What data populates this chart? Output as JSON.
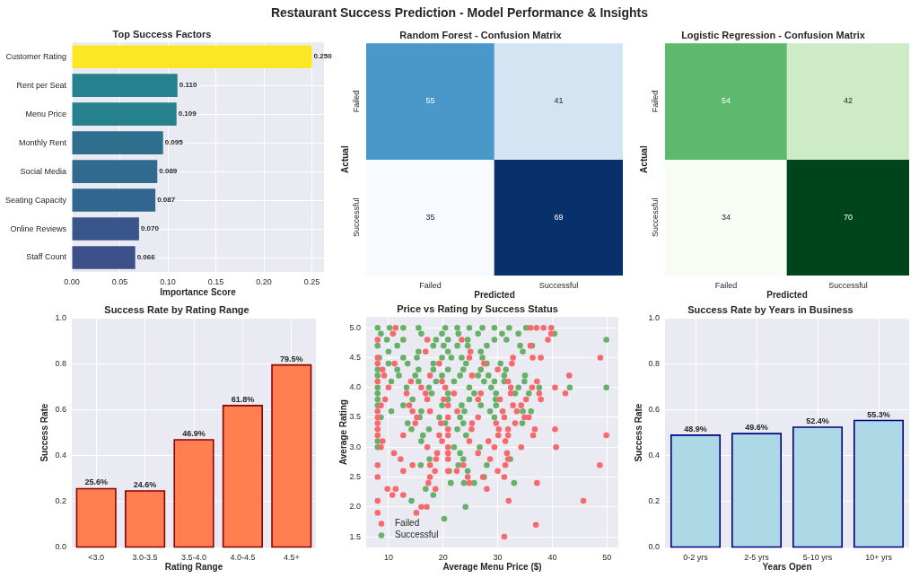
{
  "chart_data": [
    {
      "type": "other",
      "title": "Restaurant Success Prediction - Model Performance & Insights"
    },
    {
      "type": "bar",
      "title": "Top Success Factors",
      "orientation": "horizontal",
      "categories": [
        "Customer Rating",
        "Rent per Seat",
        "Menu Price",
        "Monthly Rent",
        "Social Media",
        "Seating Capacity",
        "Online Reviews",
        "Staff Count"
      ],
      "values": [
        0.25,
        0.11,
        0.109,
        0.095,
        0.089,
        0.087,
        0.07,
        0.066
      ],
      "colors": [
        "#fde725",
        "#26818e",
        "#26818e",
        "#2e6f8e",
        "#306a8e",
        "#31678e",
        "#3a558c",
        "#3d508a"
      ],
      "value_labels": [
        "0.250",
        "0.110",
        "0.109",
        "0.095",
        "0.089",
        "0.087",
        "0.070",
        "0.066"
      ],
      "xlabel": "Importance Score",
      "xlim": [
        0,
        0.2625
      ],
      "xticks": [
        {
          "value": 0,
          "label": "0.00"
        },
        0.05,
        {
          "value": 0.1,
          "label": "0.10"
        },
        0.15,
        {
          "value": 0.2,
          "label": "0.20"
        },
        0.25
      ],
      "grid": true
    },
    {
      "type": "heatmap",
      "title": "Random Forest - Confusion Matrix",
      "categories": [
        "Failed",
        "Successful"
      ],
      "y_categories": [
        "Failed",
        "Successful"
      ],
      "cells": [
        [
          55,
          41
        ],
        [
          35,
          69
        ]
      ],
      "colors": [
        [
          "#4a98c9",
          "#d4e4f3"
        ],
        [
          "#f7fbff",
          "#08306b"
        ]
      ],
      "xlabel": "Predicted",
      "ylabel": "Actual",
      "data_labels": true
    },
    {
      "type": "heatmap",
      "title": "Logistic Regression - Confusion Matrix",
      "categories": [
        "Failed",
        "Successful"
      ],
      "y_categories": [
        "Failed",
        "Successful"
      ],
      "cells": [
        [
          54,
          42
        ],
        [
          34,
          70
        ]
      ],
      "colors": [
        [
          "#5db96b",
          "#cdebc6"
        ],
        [
          "#f7fcf5",
          "#00441b"
        ]
      ],
      "xlabel": "Predicted",
      "ylabel": "Actual",
      "data_labels": true
    },
    {
      "type": "bar",
      "title": "Success Rate by Rating Range",
      "categories": [
        "<3.0",
        "3.0-3.5",
        "3.5-4.0",
        "4.0-4.5",
        "4.5+"
      ],
      "values": [
        0.256,
        0.246,
        0.469,
        0.618,
        0.795
      ],
      "value_labels": [
        "25.6%",
        "24.6%",
        "46.9%",
        "61.8%",
        "79.5%"
      ],
      "color": "#ff7f50",
      "xlabel": "Rating Range",
      "ylabel": "Success Rate",
      "ylim": [
        0,
        1
      ],
      "yticks": [
        {
          "value": 0,
          "label": "0.0"
        },
        0.2,
        0.4,
        0.6,
        0.8,
        {
          "value": 1,
          "label": "1.0"
        }
      ],
      "grid": true
    },
    {
      "type": "scatter",
      "title": "Price vs Rating by Success Status",
      "xlabel": "Average Menu Price ($)",
      "ylabel": "Average Rating",
      "xlim": [
        5.9,
        52.1
      ],
      "ylim": [
        1.32,
        5.18
      ],
      "xticks": [
        10,
        20,
        30,
        40,
        50
      ],
      "yticks": [
        1.5,
        {
          "value": 2,
          "label": "2.0"
        },
        2.5,
        {
          "value": 3,
          "label": "3.0"
        },
        3.5,
        {
          "value": 4,
          "label": "4.0"
        },
        4.5,
        {
          "value": 5,
          "label": "5.0"
        }
      ],
      "marker": "circle",
      "grid": true,
      "legend": "bottom left",
      "series": [
        {
          "name": "Failed",
          "color": "#f66a6d",
          "x": [
            11.3,
            36.0,
            37.1,
            38.4,
            39.8,
            10.8,
            39.8,
            8.0,
            17.1,
            23.4,
            39.2,
            36.0,
            16.8,
            25.0,
            8.0,
            24.8,
            32.8,
            36.4,
            37.9,
            48.8,
            8.0,
            11.1,
            19.3,
            27.5,
            32.6,
            8.9,
            30.0,
            9.2,
            17.6,
            25.3,
            43.1,
            8.0,
            14.1,
            19.8,
            31.9,
            37.2,
            10.0,
            16.0,
            20.4,
            32.4,
            36.3,
            40.5,
            13.3,
            16.8,
            22.0,
            26.9,
            32.4,
            37.6,
            42.4,
            9.4,
            17.1,
            20.1,
            26.4,
            30.4,
            35.2,
            37.9,
            8.6,
            13.8,
            20.9,
            32.8,
            34.3,
            8.0,
            14.4,
            17.6,
            22.6,
            30.9,
            33.5,
            8.0,
            15.2,
            20.9,
            26.4,
            31.2,
            34.9,
            35.7,
            8.0,
            14.9,
            19.6,
            25.3,
            29.7,
            33.2,
            8.0,
            20.9,
            25.2,
            30.2,
            31.9,
            36.8,
            40.5,
            8.0,
            12.7,
            19.3,
            20.9,
            30.1,
            31.9,
            36.5,
            49.9,
            8.9,
            19.8,
            24.8,
            28.3,
            31.4,
            8.6,
            17.1,
            20.9,
            29.4,
            34.3,
            40.7,
            11.0,
            18.9,
            20.9,
            26.4,
            31.7,
            12.2,
            18.7,
            20.9,
            28.6,
            31.9,
            8.0,
            14.4,
            17.6,
            23.7,
            31.4,
            48.7,
            12.7,
            18.5,
            20.9,
            22.5,
            30.0,
            8.0,
            17.6,
            24.5,
            27.3,
            31.2,
            17.3,
            24.8,
            37.2,
            9.8,
            11.3,
            18.6,
            28.0,
            10.7,
            12.7,
            8.0,
            32.0,
            45.7,
            16.0,
            17.0,
            8.0,
            15.1,
            37.0,
            31.2
          ],
          "values": [
            5,
            5,
            5,
            5,
            5,
            4.9,
            4.9,
            4.8,
            4.8,
            4.8,
            4.8,
            4.7,
            4.6,
            4.6,
            4.5,
            4.5,
            4.5,
            4.5,
            4.5,
            4.5,
            4.4,
            4.4,
            4.4,
            4.4,
            4.4,
            4.3,
            4.3,
            4.2,
            4.2,
            4.2,
            4.2,
            4.1,
            4.1,
            4.1,
            4.1,
            4.1,
            4,
            4,
            4,
            4,
            4,
            4,
            3.9,
            3.9,
            3.9,
            3.9,
            3.9,
            3.9,
            3.9,
            3.8,
            3.8,
            3.8,
            3.8,
            3.8,
            3.8,
            3.8,
            3.7,
            3.7,
            3.7,
            3.7,
            3.7,
            3.6,
            3.6,
            3.6,
            3.6,
            3.6,
            3.6,
            3.5,
            3.5,
            3.5,
            3.5,
            3.5,
            3.5,
            3.5,
            3.4,
            3.4,
            3.4,
            3.4,
            3.4,
            3.4,
            3.3,
            3.3,
            3.3,
            3.3,
            3.3,
            3.3,
            3.3,
            3.2,
            3.2,
            3.2,
            3.2,
            3.2,
            3.2,
            3.2,
            3.2,
            3.1,
            3.1,
            3.1,
            3.1,
            3.1,
            3,
            3,
            3,
            3,
            3,
            3,
            2.9,
            2.9,
            2.9,
            2.9,
            2.9,
            2.8,
            2.8,
            2.8,
            2.8,
            2.8,
            2.7,
            2.7,
            2.7,
            2.7,
            2.7,
            2.7,
            2.6,
            2.6,
            2.6,
            2.6,
            2.6,
            2.5,
            2.5,
            2.5,
            2.5,
            2.5,
            2.4,
            2.4,
            2.4,
            2.3,
            2.3,
            2.3,
            2.3,
            2.2,
            2.2,
            2.1,
            2.1,
            2.1,
            2,
            2,
            1.9,
            1.9,
            1.7,
            1.5
          ]
        },
        {
          "name": "Successful",
          "color": "#68b068",
          "x": [
            8.0,
            10.2,
            12.7,
            15.5,
            20.4,
            22.6,
            24.8,
            27.2,
            29.4,
            32.1,
            35.2,
            8.6,
            16.0,
            19.8,
            22.8,
            26.4,
            30.8,
            33.8,
            40.4,
            9.7,
            12.7,
            18.7,
            20.9,
            24.5,
            29.4,
            31.6,
            49.9,
            8.0,
            11.6,
            18.2,
            20.1,
            22.6,
            24.5,
            28.0,
            34.1,
            36.3,
            10.0,
            15.5,
            20.9,
            26.9,
            34.6,
            8.3,
            12.7,
            15.2,
            19.8,
            21.5,
            23.4,
            27.2,
            10.0,
            13.5,
            18.2,
            24.2,
            28.0,
            30.5,
            8.0,
            11.6,
            15.5,
            18.2,
            20.9,
            23.7,
            26.9,
            31.5,
            8.0,
            11.9,
            14.9,
            19.8,
            23.1,
            26.4,
            28.3,
            31.2,
            35.0,
            10.5,
            15.5,
            18.7,
            22.0,
            27.5,
            29.4,
            31.2,
            34.9,
            8.0,
            13.3,
            17.4,
            24.8,
            28.8,
            33.8,
            37.6,
            43.2,
            49.9,
            8.0,
            17.9,
            20.9,
            25.7,
            29.7,
            33.2,
            35.7,
            8.0,
            14.4,
            20.9,
            24.8,
            29.6,
            8.0,
            12.7,
            19.8,
            23.4,
            26.9,
            29.7,
            10.5,
            16.0,
            23.9,
            28.6,
            34.6,
            36.1,
            8.6,
            15.7,
            19.3,
            23.1,
            29.4,
            13.5,
            20.4,
            23.7,
            34.5,
            14.2,
            17.4,
            22.6,
            16.3,
            24.2,
            8.0,
            16.0,
            8.0,
            22.0,
            26.7,
            23.1,
            17.5,
            23.7,
            32.3,
            15.9,
            22.8,
            28.0,
            21.1,
            24.5,
            27.5,
            21.4,
            23.8,
            25.7,
            33.0,
            16.8,
            18.2,
            14.2,
            24.1,
            20.2
          ],
          "values": [
            5,
            5,
            5,
            5,
            5,
            5,
            5,
            5,
            5,
            5,
            5,
            4.9,
            4.9,
            4.9,
            4.9,
            4.9,
            4.9,
            4.9,
            4.9,
            4.8,
            4.8,
            4.8,
            4.8,
            4.8,
            4.8,
            4.8,
            4.8,
            4.7,
            4.7,
            4.7,
            4.7,
            4.7,
            4.7,
            4.7,
            4.7,
            4.7,
            4.6,
            4.6,
            4.6,
            4.6,
            4.6,
            4.5,
            4.5,
            4.5,
            4.5,
            4.5,
            4.5,
            4.5,
            4.4,
            4.4,
            4.4,
            4.4,
            4.4,
            4.4,
            4.3,
            4.3,
            4.3,
            4.3,
            4.3,
            4.3,
            4.3,
            4.3,
            4.2,
            4.2,
            4.2,
            4.2,
            4.2,
            4.2,
            4.2,
            4.2,
            4.2,
            4.1,
            4.1,
            4.1,
            4.1,
            4.1,
            4.1,
            4.1,
            4.1,
            4,
            4,
            4,
            4,
            4,
            4,
            4,
            4,
            4,
            3.9,
            3.9,
            3.9,
            3.9,
            3.9,
            3.9,
            3.9,
            3.8,
            3.8,
            3.8,
            3.8,
            3.8,
            3.7,
            3.7,
            3.7,
            3.7,
            3.7,
            3.7,
            3.6,
            3.6,
            3.6,
            3.6,
            3.6,
            3.6,
            3.5,
            3.5,
            3.5,
            3.5,
            3.5,
            3.4,
            3.4,
            3.4,
            3.4,
            3.3,
            3.3,
            3.3,
            3.2,
            3.2,
            3.1,
            3.1,
            3,
            3,
            3,
            2.9,
            2.8,
            2.8,
            2.8,
            2.7,
            2.7,
            2.7,
            2.6,
            2.6,
            2.5,
            2.4,
            2.4,
            2.4,
            2.4,
            2.3,
            2.2,
            2.1,
            2,
            1.8
          ]
        }
      ]
    },
    {
      "type": "bar",
      "title": "Success Rate by Years in Business",
      "categories": [
        "0-2 yrs",
        "2-5 yrs",
        "5-10 yrs",
        "10+ yrs"
      ],
      "values": [
        0.489,
        0.496,
        0.524,
        0.553
      ],
      "value_labels": [
        "48.9%",
        "49.6%",
        "52.4%",
        "55.3%"
      ],
      "color": "#add8e6",
      "xlabel": "Years Open",
      "ylabel": "Success Rate",
      "ylim": [
        0,
        1
      ],
      "yticks": [
        {
          "value": 0,
          "label": "0.0"
        },
        0.2,
        0.4,
        0.6,
        0.8,
        {
          "value": 1,
          "label": "1.0"
        }
      ],
      "grid": true
    }
  ]
}
